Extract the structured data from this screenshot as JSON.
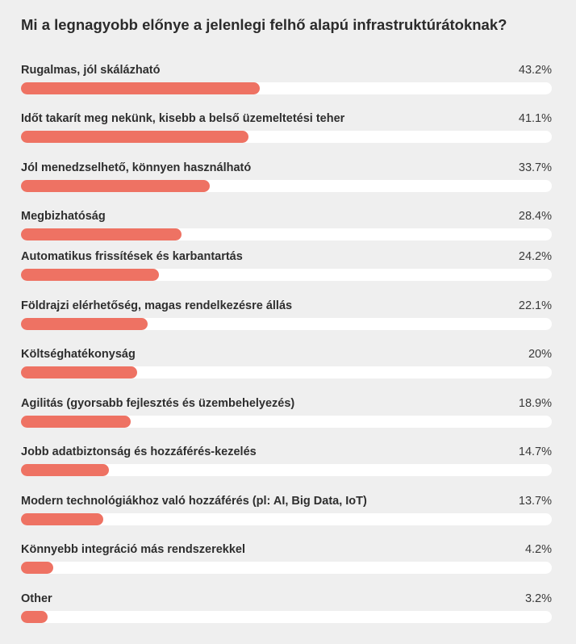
{
  "chart_data": {
    "type": "bar",
    "orientation": "horizontal",
    "title": "Mi a legnagyobb előnye a jelenlegi felhő alapú infrastruktúrátoknak?",
    "categories": [
      "Rugalmas, jól skálázható",
      "Időt takarít meg nekünk, kisebb a belső üzemeltetési teher",
      "Jól menedzselhető, könnyen használható",
      "Megbizhatóság",
      "Automatikus frissítések és karbantartás",
      "Földrajzi elérhetőség, magas rendelkezésre állás",
      "Költséghatékonyság",
      "Agilitás (gyorsabb fejlesztés és üzembehelyezés)",
      "Jobb adatbiztonság és hozzáférés-kezelés",
      "Modern technológiákhoz való hozzáférés (pl: AI, Big Data, IoT)",
      "Könnyebb integráció más rendszerekkel",
      "Other"
    ],
    "values": [
      43.2,
      41.1,
      33.7,
      28.4,
      24.2,
      22.1,
      20,
      18.9,
      14.7,
      13.7,
      4.2,
      3.2
    ],
    "value_labels": [
      "43.2%",
      "41.1%",
      "33.7%",
      "28.4%",
      "24.2%",
      "22.1%",
      "20%",
      "18.9%",
      "14.7%",
      "13.7%",
      "4.2%",
      "3.2%"
    ],
    "xlim": [
      0,
      100
    ],
    "grid": false,
    "colors": {
      "bar": "#ee7263",
      "track": "#ffffff",
      "background": "#efefef"
    }
  }
}
